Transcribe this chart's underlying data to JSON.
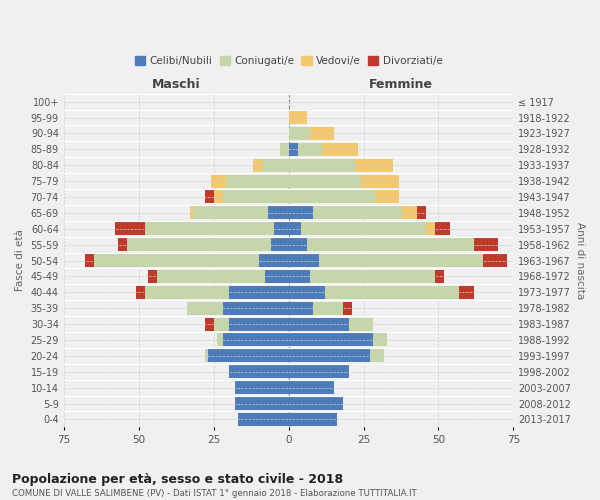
{
  "age_groups": [
    "0-4",
    "5-9",
    "10-14",
    "15-19",
    "20-24",
    "25-29",
    "30-34",
    "35-39",
    "40-44",
    "45-49",
    "50-54",
    "55-59",
    "60-64",
    "65-69",
    "70-74",
    "75-79",
    "80-84",
    "85-89",
    "90-94",
    "95-99",
    "100+"
  ],
  "birth_years": [
    "2013-2017",
    "2008-2012",
    "2003-2007",
    "1998-2002",
    "1993-1997",
    "1988-1992",
    "1983-1987",
    "1978-1982",
    "1973-1977",
    "1968-1972",
    "1963-1967",
    "1958-1962",
    "1953-1957",
    "1948-1952",
    "1943-1947",
    "1938-1942",
    "1933-1937",
    "1928-1932",
    "1923-1927",
    "1918-1922",
    "≤ 1917"
  ],
  "colors": {
    "celibi": "#4e7cba",
    "coniugati": "#c5d6a8",
    "vedovi": "#f4c96e",
    "divorziati": "#c0392b"
  },
  "maschi": {
    "celibi": [
      17,
      18,
      18,
      20,
      27,
      22,
      20,
      22,
      20,
      8,
      10,
      6,
      5,
      7,
      0,
      0,
      0,
      0,
      0,
      0,
      0
    ],
    "coniugati": [
      0,
      0,
      0,
      0,
      1,
      2,
      5,
      12,
      28,
      36,
      55,
      48,
      43,
      25,
      22,
      21,
      9,
      3,
      0,
      0,
      0
    ],
    "vedovi": [
      0,
      0,
      0,
      0,
      0,
      0,
      0,
      0,
      0,
      0,
      0,
      0,
      0,
      1,
      3,
      5,
      3,
      0,
      0,
      0,
      0
    ],
    "divorziati": [
      0,
      0,
      0,
      0,
      0,
      0,
      3,
      0,
      3,
      3,
      3,
      3,
      10,
      0,
      3,
      0,
      0,
      0,
      0,
      0,
      0
    ]
  },
  "femmine": {
    "celibi": [
      16,
      18,
      15,
      20,
      27,
      28,
      20,
      8,
      12,
      7,
      10,
      6,
      4,
      8,
      0,
      0,
      0,
      3,
      0,
      0,
      0
    ],
    "coniugati": [
      0,
      0,
      0,
      0,
      5,
      5,
      8,
      10,
      45,
      42,
      55,
      56,
      42,
      30,
      29,
      24,
      22,
      8,
      7,
      0,
      0
    ],
    "vedovi": [
      0,
      0,
      0,
      0,
      0,
      0,
      0,
      0,
      0,
      0,
      0,
      0,
      3,
      5,
      8,
      13,
      13,
      12,
      8,
      6,
      0
    ],
    "divorziati": [
      0,
      0,
      0,
      0,
      0,
      0,
      0,
      3,
      5,
      3,
      8,
      8,
      5,
      3,
      0,
      0,
      0,
      0,
      0,
      0,
      0
    ]
  },
  "xlim": 75,
  "title": "Popolazione per età, sesso e stato civile - 2018",
  "subtitle": "COMUNE DI VALLE SALIMBENE (PV) - Dati ISTAT 1° gennaio 2018 - Elaborazione TUTTITALIA.IT",
  "ylabel": "Fasce di età",
  "ylabel_right": "Anni di nascita",
  "xlabel_maschi": "Maschi",
  "xlabel_femmine": "Femmine",
  "legend_labels": [
    "Celibi/Nubili",
    "Coniugati/e",
    "Vedovi/e",
    "Divorziati/e"
  ],
  "background_color": "#f0f0f0",
  "grid_color": "#cccccc"
}
